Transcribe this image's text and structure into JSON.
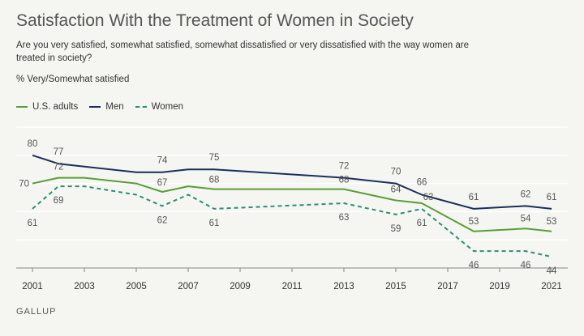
{
  "title": "Satisfaction With the Treatment of Women in Society",
  "subtitle": "Are you very satisfied, somewhat satisfied, somewhat dissatisfied or very dissatisfied with the way women are treated in society?",
  "measure_label": "% Very/Somewhat satisfied",
  "source": "GALLUP",
  "colors": {
    "us_adults": "#5a9e3a",
    "men": "#1b2f5e",
    "women": "#2a8d7a",
    "grid": "#ffffff",
    "axis": "#888888",
    "label": "#555555"
  },
  "chart_data": {
    "type": "line",
    "ylim": [
      40,
      90
    ],
    "x_ticks": [
      "2001",
      "2003",
      "2005",
      "2007",
      "2009",
      "2011",
      "2013",
      "2015",
      "2017",
      "2019",
      "2021"
    ],
    "legend_position": "top-left",
    "grid": true,
    "series": [
      {
        "name": "U.S. adults",
        "style": "solid",
        "x": [
          2001,
          2002,
          2003,
          2005,
          2006,
          2007,
          2008,
          2013,
          2015,
          2016,
          2018,
          2020,
          2021
        ],
        "values": [
          70,
          72,
          72,
          70,
          67,
          69,
          68,
          68,
          64,
          63,
          53,
          54,
          53
        ],
        "labels": [
          {
            "x": 2001,
            "text": "70"
          },
          {
            "x": 2002,
            "text": "72"
          },
          {
            "x": 2006,
            "text": "67"
          },
          {
            "x": 2008,
            "text": "68"
          },
          {
            "x": 2013,
            "text": "68"
          },
          {
            "x": 2015,
            "text": "64"
          },
          {
            "x": 2016,
            "text": "63"
          },
          {
            "x": 2018,
            "text": "53"
          },
          {
            "x": 2020,
            "text": "54"
          },
          {
            "x": 2021,
            "text": "53"
          }
        ]
      },
      {
        "name": "Men",
        "style": "solid",
        "x": [
          2001,
          2002,
          2003,
          2005,
          2006,
          2007,
          2008,
          2013,
          2015,
          2016,
          2018,
          2020,
          2021
        ],
        "values": [
          80,
          77,
          76,
          74,
          74,
          75,
          75,
          72,
          70,
          66,
          61,
          62,
          61
        ],
        "labels": [
          {
            "x": 2001,
            "text": "80"
          },
          {
            "x": 2002,
            "text": "77"
          },
          {
            "x": 2006,
            "text": "74"
          },
          {
            "x": 2008,
            "text": "75"
          },
          {
            "x": 2013,
            "text": "72"
          },
          {
            "x": 2015,
            "text": "70"
          },
          {
            "x": 2016,
            "text": "66"
          },
          {
            "x": 2018,
            "text": "61"
          },
          {
            "x": 2020,
            "text": "62"
          },
          {
            "x": 2021,
            "text": "61"
          }
        ]
      },
      {
        "name": "Women",
        "style": "dashed",
        "x": [
          2001,
          2002,
          2003,
          2005,
          2006,
          2007,
          2008,
          2013,
          2015,
          2016,
          2018,
          2020,
          2021
        ],
        "values": [
          61,
          69,
          69,
          66,
          62,
          66,
          61,
          63,
          59,
          61,
          46,
          46,
          44
        ],
        "labels": [
          {
            "x": 2001,
            "text": "61"
          },
          {
            "x": 2002,
            "text": "69"
          },
          {
            "x": 2006,
            "text": "62"
          },
          {
            "x": 2008,
            "text": "61"
          },
          {
            "x": 2013,
            "text": "63"
          },
          {
            "x": 2015,
            "text": "59"
          },
          {
            "x": 2016,
            "text": "61"
          },
          {
            "x": 2018,
            "text": "46"
          },
          {
            "x": 2020,
            "text": "46"
          },
          {
            "x": 2021,
            "text": "44"
          }
        ]
      }
    ]
  }
}
